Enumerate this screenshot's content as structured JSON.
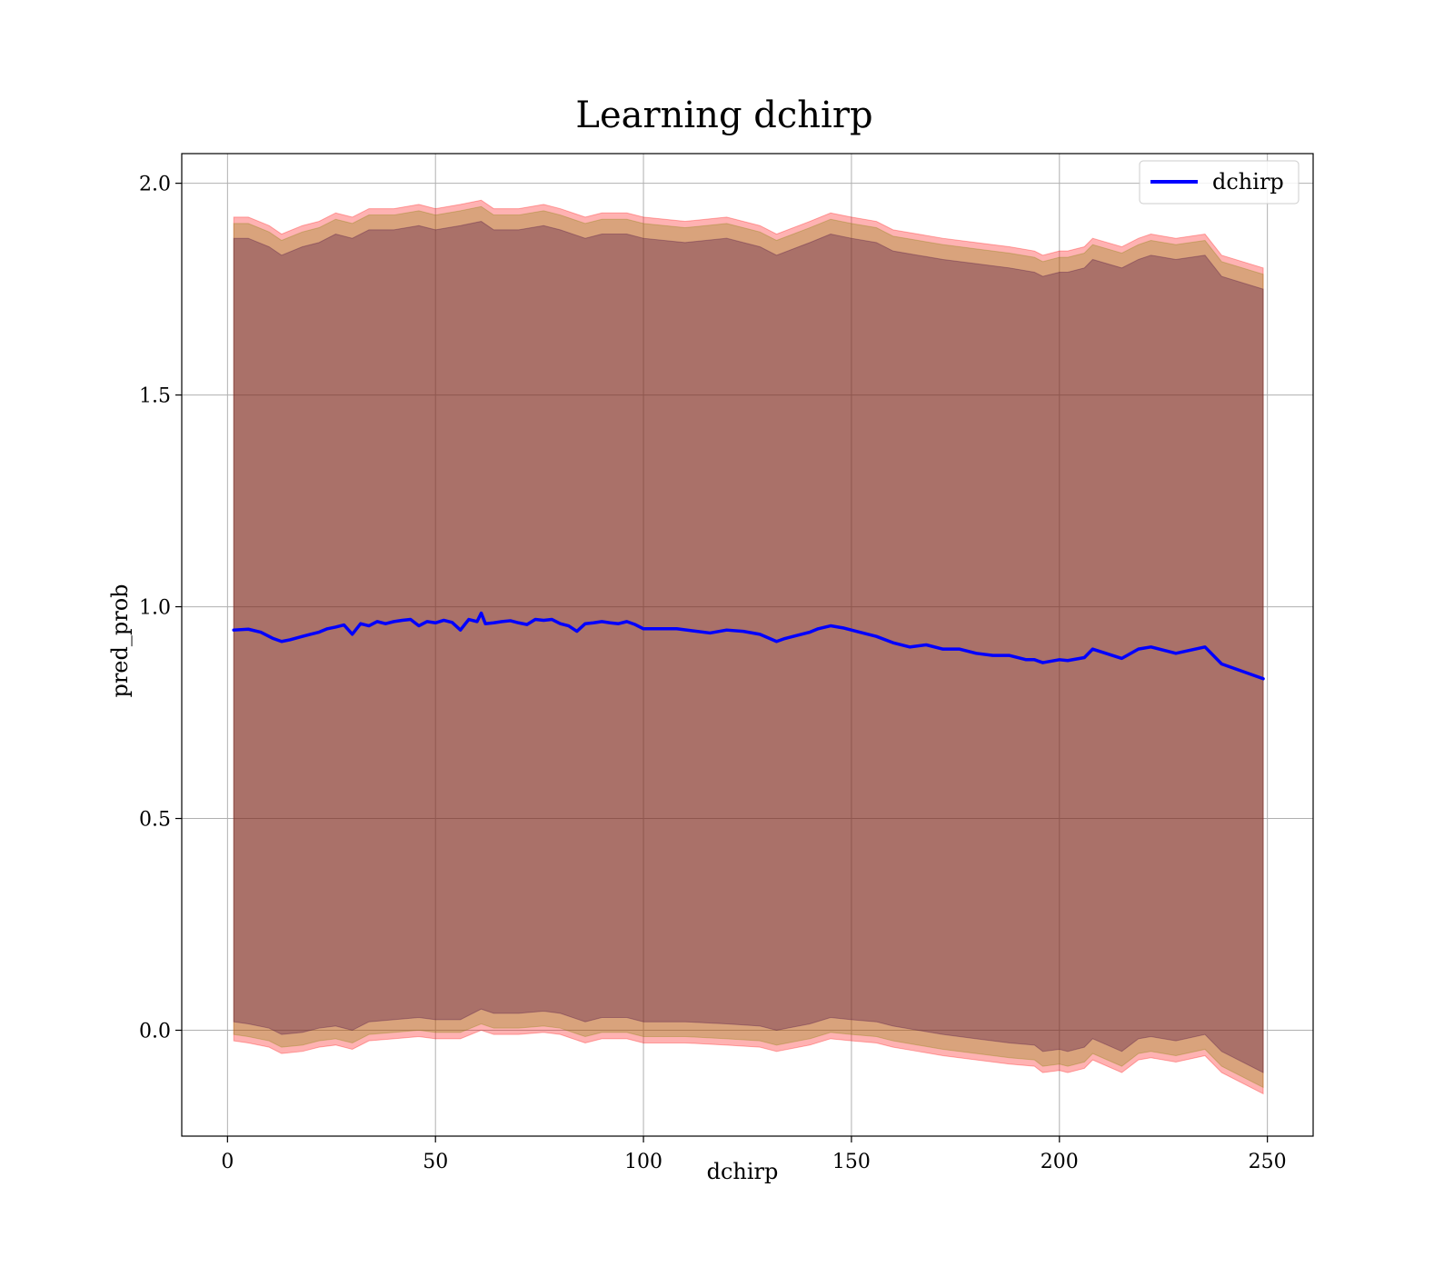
{
  "chart_data": {
    "type": "line",
    "title": "Learning dchirp",
    "xlabel": "dchirp",
    "ylabel": "pred_prob",
    "xlim": [
      -11,
      261
    ],
    "ylim": [
      -0.25,
      2.07
    ],
    "xticks": [
      0,
      50,
      100,
      150,
      200,
      250
    ],
    "xtick_labels": [
      "0",
      "50",
      "100",
      "150",
      "200",
      "250"
    ],
    "yticks": [
      0.0,
      0.5,
      1.0,
      1.5,
      2.0
    ],
    "ytick_labels": [
      "0.0",
      "0.5",
      "1.0",
      "1.5",
      "2.0"
    ],
    "grid": true,
    "legend": {
      "position": "upper right"
    },
    "series": [
      {
        "name": "dchirp",
        "color": "#0000ff",
        "x": [
          1.5,
          5,
          8,
          11,
          13,
          15,
          18,
          20,
          22,
          24,
          26,
          28,
          30,
          32,
          34,
          36,
          38,
          40,
          42,
          44,
          46,
          48,
          50,
          52,
          54,
          56,
          58,
          60,
          61,
          62,
          64,
          66,
          68,
          70,
          72,
          74,
          76,
          78,
          80,
          82,
          84,
          86,
          88,
          90,
          92,
          94,
          96,
          98,
          100,
          104,
          108,
          112,
          116,
          120,
          124,
          128,
          132,
          134,
          136,
          140,
          142,
          145,
          148,
          152,
          156,
          160,
          164,
          168,
          172,
          176,
          180,
          184,
          188,
          192,
          194,
          196,
          200,
          202,
          206,
          208,
          215,
          219,
          222,
          228,
          235,
          239,
          249
        ],
        "values": [
          0.945,
          0.947,
          0.94,
          0.925,
          0.918,
          0.922,
          0.93,
          0.935,
          0.94,
          0.948,
          0.952,
          0.957,
          0.935,
          0.96,
          0.955,
          0.965,
          0.96,
          0.965,
          0.968,
          0.97,
          0.955,
          0.965,
          0.962,
          0.968,
          0.963,
          0.945,
          0.97,
          0.965,
          0.985,
          0.96,
          0.962,
          0.965,
          0.967,
          0.962,
          0.958,
          0.97,
          0.968,
          0.97,
          0.96,
          0.955,
          0.942,
          0.96,
          0.962,
          0.965,
          0.962,
          0.96,
          0.965,
          0.958,
          0.948,
          0.948,
          0.948,
          0.943,
          0.938,
          0.945,
          0.942,
          0.935,
          0.918,
          0.925,
          0.93,
          0.94,
          0.948,
          0.955,
          0.95,
          0.94,
          0.93,
          0.915,
          0.905,
          0.91,
          0.9,
          0.9,
          0.89,
          0.885,
          0.885,
          0.875,
          0.875,
          0.868,
          0.875,
          0.873,
          0.88,
          0.9,
          0.878,
          0.9,
          0.905,
          0.89,
          0.905,
          0.865,
          0.83
        ]
      }
    ],
    "bands": [
      {
        "color": "#ff0000",
        "opacity": 0.3,
        "x": [
          1.5,
          5,
          10,
          13,
          18,
          22,
          26,
          30,
          34,
          40,
          46,
          50,
          56,
          61,
          64,
          70,
          76,
          80,
          86,
          90,
          96,
          100,
          110,
          120,
          128,
          132,
          140,
          145,
          150,
          156,
          160,
          166,
          172,
          180,
          188,
          194,
          196,
          200,
          202,
          206,
          208,
          215,
          219,
          222,
          228,
          235,
          239,
          249
        ],
        "upper": [
          1.92,
          1.92,
          1.9,
          1.88,
          1.9,
          1.91,
          1.93,
          1.92,
          1.94,
          1.94,
          1.95,
          1.94,
          1.95,
          1.96,
          1.94,
          1.94,
          1.95,
          1.94,
          1.92,
          1.93,
          1.93,
          1.92,
          1.91,
          1.92,
          1.9,
          1.88,
          1.91,
          1.93,
          1.92,
          1.91,
          1.89,
          1.88,
          1.87,
          1.86,
          1.85,
          1.84,
          1.83,
          1.84,
          1.84,
          1.85,
          1.87,
          1.85,
          1.87,
          1.88,
          1.87,
          1.88,
          1.83,
          1.8
        ],
        "lower": [
          -0.025,
          -0.03,
          -0.04,
          -0.055,
          -0.05,
          -0.04,
          -0.035,
          -0.045,
          -0.025,
          -0.02,
          -0.015,
          -0.02,
          -0.02,
          0.0,
          -0.01,
          -0.01,
          -0.005,
          -0.01,
          -0.03,
          -0.02,
          -0.02,
          -0.03,
          -0.03,
          -0.035,
          -0.04,
          -0.05,
          -0.035,
          -0.02,
          -0.025,
          -0.03,
          -0.04,
          -0.05,
          -0.06,
          -0.07,
          -0.08,
          -0.085,
          -0.1,
          -0.095,
          -0.1,
          -0.09,
          -0.07,
          -0.1,
          -0.07,
          -0.065,
          -0.075,
          -0.06,
          -0.1,
          -0.15
        ]
      },
      {
        "color": "#808000",
        "opacity": 0.3,
        "x": [
          1.5,
          5,
          10,
          13,
          18,
          22,
          26,
          30,
          34,
          40,
          46,
          50,
          56,
          61,
          64,
          70,
          76,
          80,
          86,
          90,
          96,
          100,
          110,
          120,
          128,
          132,
          140,
          145,
          150,
          156,
          160,
          166,
          172,
          180,
          188,
          194,
          196,
          200,
          202,
          206,
          208,
          215,
          219,
          222,
          228,
          235,
          239,
          249
        ],
        "upper": [
          1.905,
          1.905,
          1.885,
          1.865,
          1.885,
          1.895,
          1.915,
          1.905,
          1.925,
          1.925,
          1.935,
          1.925,
          1.935,
          1.945,
          1.925,
          1.925,
          1.935,
          1.925,
          1.905,
          1.915,
          1.915,
          1.905,
          1.895,
          1.905,
          1.885,
          1.865,
          1.895,
          1.915,
          1.905,
          1.895,
          1.875,
          1.865,
          1.855,
          1.845,
          1.835,
          1.825,
          1.815,
          1.825,
          1.825,
          1.835,
          1.855,
          1.835,
          1.855,
          1.865,
          1.855,
          1.865,
          1.815,
          1.785
        ],
        "lower": [
          -0.01,
          -0.015,
          -0.025,
          -0.04,
          -0.035,
          -0.025,
          -0.02,
          -0.03,
          -0.01,
          -0.005,
          0.0,
          -0.005,
          -0.005,
          0.015,
          0.005,
          0.005,
          0.01,
          0.005,
          -0.015,
          -0.005,
          -0.005,
          -0.015,
          -0.015,
          -0.02,
          -0.025,
          -0.035,
          -0.02,
          -0.005,
          -0.01,
          -0.015,
          -0.025,
          -0.035,
          -0.045,
          -0.055,
          -0.065,
          -0.07,
          -0.085,
          -0.08,
          -0.085,
          -0.075,
          -0.055,
          -0.085,
          -0.055,
          -0.05,
          -0.06,
          -0.045,
          -0.085,
          -0.135
        ]
      },
      {
        "color": "#400040",
        "opacity": 0.3,
        "x": [
          1.5,
          5,
          10,
          13,
          18,
          22,
          26,
          30,
          34,
          40,
          46,
          50,
          56,
          61,
          64,
          70,
          76,
          80,
          86,
          90,
          96,
          100,
          110,
          120,
          128,
          132,
          140,
          145,
          150,
          156,
          160,
          166,
          172,
          180,
          188,
          194,
          196,
          200,
          202,
          206,
          208,
          215,
          219,
          222,
          228,
          235,
          239,
          249
        ],
        "upper": [
          1.87,
          1.87,
          1.85,
          1.83,
          1.85,
          1.86,
          1.88,
          1.87,
          1.89,
          1.89,
          1.9,
          1.89,
          1.9,
          1.91,
          1.89,
          1.89,
          1.9,
          1.89,
          1.87,
          1.88,
          1.88,
          1.87,
          1.86,
          1.87,
          1.85,
          1.83,
          1.86,
          1.88,
          1.87,
          1.86,
          1.84,
          1.83,
          1.82,
          1.81,
          1.8,
          1.79,
          1.78,
          1.79,
          1.79,
          1.8,
          1.82,
          1.8,
          1.82,
          1.83,
          1.82,
          1.83,
          1.78,
          1.75
        ],
        "lower": [
          0.02,
          0.015,
          0.005,
          -0.01,
          -0.005,
          0.005,
          0.01,
          0.0,
          0.02,
          0.025,
          0.03,
          0.025,
          0.025,
          0.05,
          0.04,
          0.04,
          0.045,
          0.04,
          0.02,
          0.03,
          0.03,
          0.02,
          0.02,
          0.015,
          0.01,
          0.0,
          0.015,
          0.03,
          0.025,
          0.02,
          0.01,
          0.0,
          -0.01,
          -0.02,
          -0.03,
          -0.035,
          -0.05,
          -0.045,
          -0.05,
          -0.04,
          -0.02,
          -0.05,
          -0.02,
          -0.015,
          -0.025,
          -0.01,
          -0.05,
          -0.1
        ]
      }
    ]
  }
}
